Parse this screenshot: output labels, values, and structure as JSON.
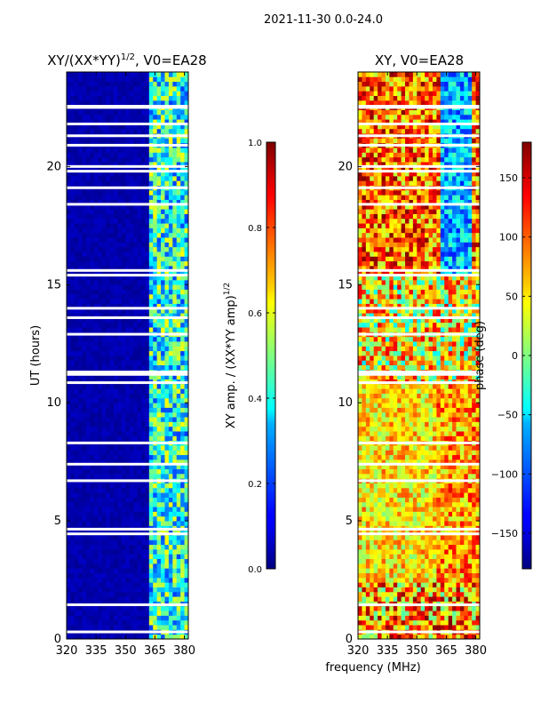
{
  "suptitle": "2021-11-30 0.0-24.0",
  "shared": {
    "xlabel": "frequency (MHz)",
    "ylabel": "UT (hours)",
    "xlim": [
      320,
      382
    ],
    "ylim": [
      0,
      24
    ],
    "xticks": [
      320,
      335,
      350,
      365,
      380
    ],
    "yticks": [
      0,
      5,
      10,
      15,
      20
    ]
  },
  "chart_data": [
    {
      "type": "heatmap",
      "title_main": "XY/(XX*YY)",
      "title_sup": "1/2",
      "title_tail": ", V0=EA28",
      "xlabel": "frequency (MHz)",
      "ylabel": "UT (hours)",
      "xlim": [
        320,
        382
      ],
      "ylim": [
        0,
        24
      ],
      "colormap": "jet",
      "clim": [
        0.0,
        1.0
      ],
      "colorbar_label_main": "XY amp. / (XX*YY amp)",
      "colorbar_label_sup": "1/2",
      "colorbar_ticks": [
        "0.0",
        "0.2",
        "0.4",
        "0.6",
        "0.8",
        "1.0"
      ],
      "colorbar_tick_values": [
        0.0,
        0.2,
        0.4,
        0.6,
        0.8,
        1.0
      ],
      "data_description": "near zero below ~362 MHz, 0.2-0.6 between ~362-382 MHz"
    },
    {
      "type": "heatmap",
      "title_main": "XY",
      "title_tail": ", V0=EA28",
      "xlabel": "frequency (MHz)",
      "xlim": [
        320,
        382
      ],
      "ylim": [
        0,
        24
      ],
      "colormap": "jet",
      "clim": [
        -180,
        180
      ],
      "colorbar_label": "phase (deg)",
      "colorbar_ticks": [
        "150",
        "100",
        "50",
        "0",
        "−50",
        "−100",
        "−150"
      ],
      "colorbar_tick_values": [
        150,
        100,
        50,
        0,
        -50,
        -100,
        -150
      ],
      "data_description": "phase varies widely across frequency and time"
    }
  ],
  "flagged_rows_hours": [
    0.3,
    1.45,
    4.45,
    4.65,
    6.7,
    7.4,
    8.3,
    10.85,
    11.2,
    11.3,
    12.9,
    13.6,
    14.0,
    15.4,
    15.6,
    18.4,
    19.1,
    19.8,
    20.0,
    20.9,
    21.3,
    21.8,
    22.5,
    22.55
  ]
}
